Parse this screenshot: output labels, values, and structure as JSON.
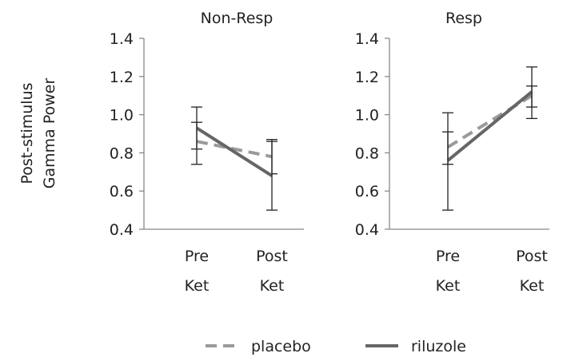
{
  "chart_data": {
    "type": "line",
    "ylabel_line1": "Post-stimulus",
    "ylabel_line2": "Gamma Power",
    "legend": [
      {
        "name": "placebo",
        "color": "#9a9a9a",
        "dash": true
      },
      {
        "name": "riluzole",
        "color": "#666666",
        "dash": false
      }
    ],
    "panels": [
      {
        "title": "Non-Resp",
        "categories": [
          [
            "Pre",
            "Ket"
          ],
          [
            "Post",
            "Ket"
          ]
        ],
        "ylim": [
          0.4,
          1.4
        ],
        "yticks": [
          "1.4",
          "1.2",
          "1.0",
          "0.8",
          "0.6",
          "0.4"
        ],
        "series": [
          {
            "name": "placebo",
            "values": [
              0.86,
              0.78
            ],
            "err_low": [
              0.82,
              0.69
            ],
            "err_high": [
              0.96,
              0.87
            ]
          },
          {
            "name": "riluzole",
            "values": [
              0.93,
              0.68
            ],
            "err_low": [
              0.74,
              0.5
            ],
            "err_high": [
              1.04,
              0.86
            ]
          }
        ]
      },
      {
        "title": "Resp",
        "categories": [
          [
            "Pre",
            "Ket"
          ],
          [
            "Post",
            "Ket"
          ]
        ],
        "ylim": [
          0.4,
          1.4
        ],
        "yticks": [
          "1.4",
          "1.2",
          "1.0",
          "0.8",
          "0.6",
          "0.4"
        ],
        "series": [
          {
            "name": "placebo",
            "values": [
              0.83,
              1.1
            ],
            "err_low": [
              0.74,
              0.98
            ],
            "err_high": [
              0.91,
              1.15
            ]
          },
          {
            "name": "riluzole",
            "values": [
              0.76,
              1.12
            ],
            "err_low": [
              0.5,
              1.04
            ],
            "err_high": [
              1.01,
              1.25
            ]
          }
        ]
      }
    ]
  }
}
